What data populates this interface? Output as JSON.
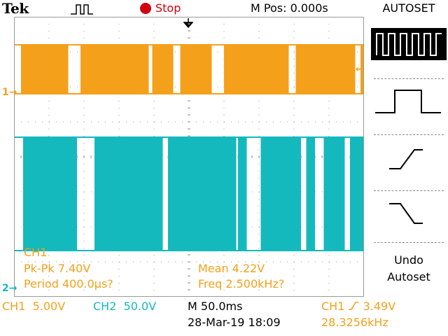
{
  "header": {
    "brand": "Tek",
    "trigger_icon": "pulse-trigger-icon",
    "run_state": "Stop",
    "m_pos": "M Pos: 0.000s",
    "menu_title": "AUTOSET"
  },
  "side_menu": {
    "options": [
      {
        "icon": "multi-cycle-square-wave-icon",
        "selected": true
      },
      {
        "icon": "single-cycle-square-wave-icon",
        "selected": false
      },
      {
        "icon": "rising-edge-icon",
        "selected": false
      },
      {
        "icon": "falling-edge-icon",
        "selected": false
      }
    ],
    "undo_line1": "Undo",
    "undo_line2": "Autoset"
  },
  "markers": {
    "ch1": "1",
    "ch2": "2"
  },
  "measurements": {
    "channel": "CH1",
    "pk_pk": "Pk-Pk 7.40V",
    "period": "Period 400.0µs?",
    "mean": "Mean 4.22V",
    "freq": "Freq 2.500kHz?"
  },
  "status_bar": {
    "ch1_label": "CH1",
    "ch1_scale": "5.00V",
    "ch2_label": "CH2",
    "ch2_scale": "50.0V",
    "timebase": "M 50.0ms",
    "trigger_source": "CH1",
    "trigger_level": "3.49V",
    "datetime": "28-Mar-19 18:09",
    "trigger_freq": "28.3256kHz"
  },
  "colors": {
    "ch1": "#f5a01a",
    "ch2": "#13b9bd",
    "stop": "#d00010",
    "grid": "#9a9a9a"
  },
  "waveforms": {
    "ch1_gaps": [
      [
        0.0,
        0.02
      ],
      [
        0.155,
        0.19
      ],
      [
        0.385,
        0.395
      ],
      [
        0.455,
        0.475
      ],
      [
        0.565,
        0.6
      ],
      [
        0.785,
        0.805
      ],
      [
        0.975,
        0.99
      ]
    ],
    "ch2_gaps": [
      [
        0.0,
        0.026
      ],
      [
        0.18,
        0.23
      ],
      [
        0.425,
        0.44
      ],
      [
        0.635,
        0.64
      ],
      [
        0.665,
        0.705
      ],
      [
        0.82,
        0.835
      ],
      [
        0.86,
        0.885
      ],
      [
        0.945,
        0.96
      ]
    ]
  }
}
